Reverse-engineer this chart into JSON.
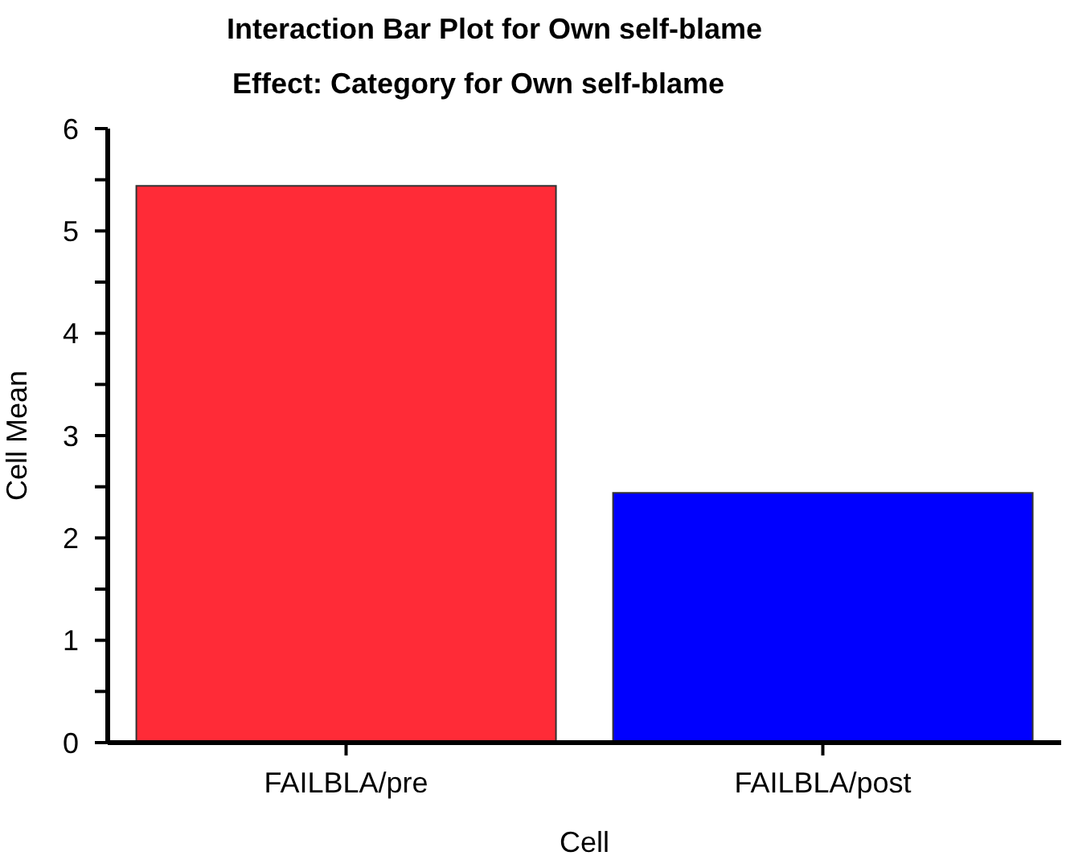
{
  "chart_data": {
    "type": "bar",
    "title": "Interaction Bar Plot for Own self-blame",
    "subtitle": "Effect: Category for Own self-blame",
    "xlabel": "Cell",
    "ylabel": "Cell Mean",
    "categories": [
      "FAILBLA/pre",
      "FAILBLA/post"
    ],
    "values": [
      5.44,
      2.44
    ],
    "colors": [
      "#ff2b37",
      "#0000ff"
    ],
    "ylim": [
      0,
      6
    ],
    "yticks": [
      0,
      {
        "value": 0.5,
        "label": null
      },
      1,
      {
        "value": 1.5,
        "label": null
      },
      2,
      {
        "value": 2.5,
        "label": null
      },
      3,
      {
        "value": 3.5,
        "label": null
      },
      4,
      {
        "value": 4.5,
        "label": null
      },
      5,
      {
        "value": 5.5,
        "label": null
      },
      6
    ],
    "grid": false
  }
}
